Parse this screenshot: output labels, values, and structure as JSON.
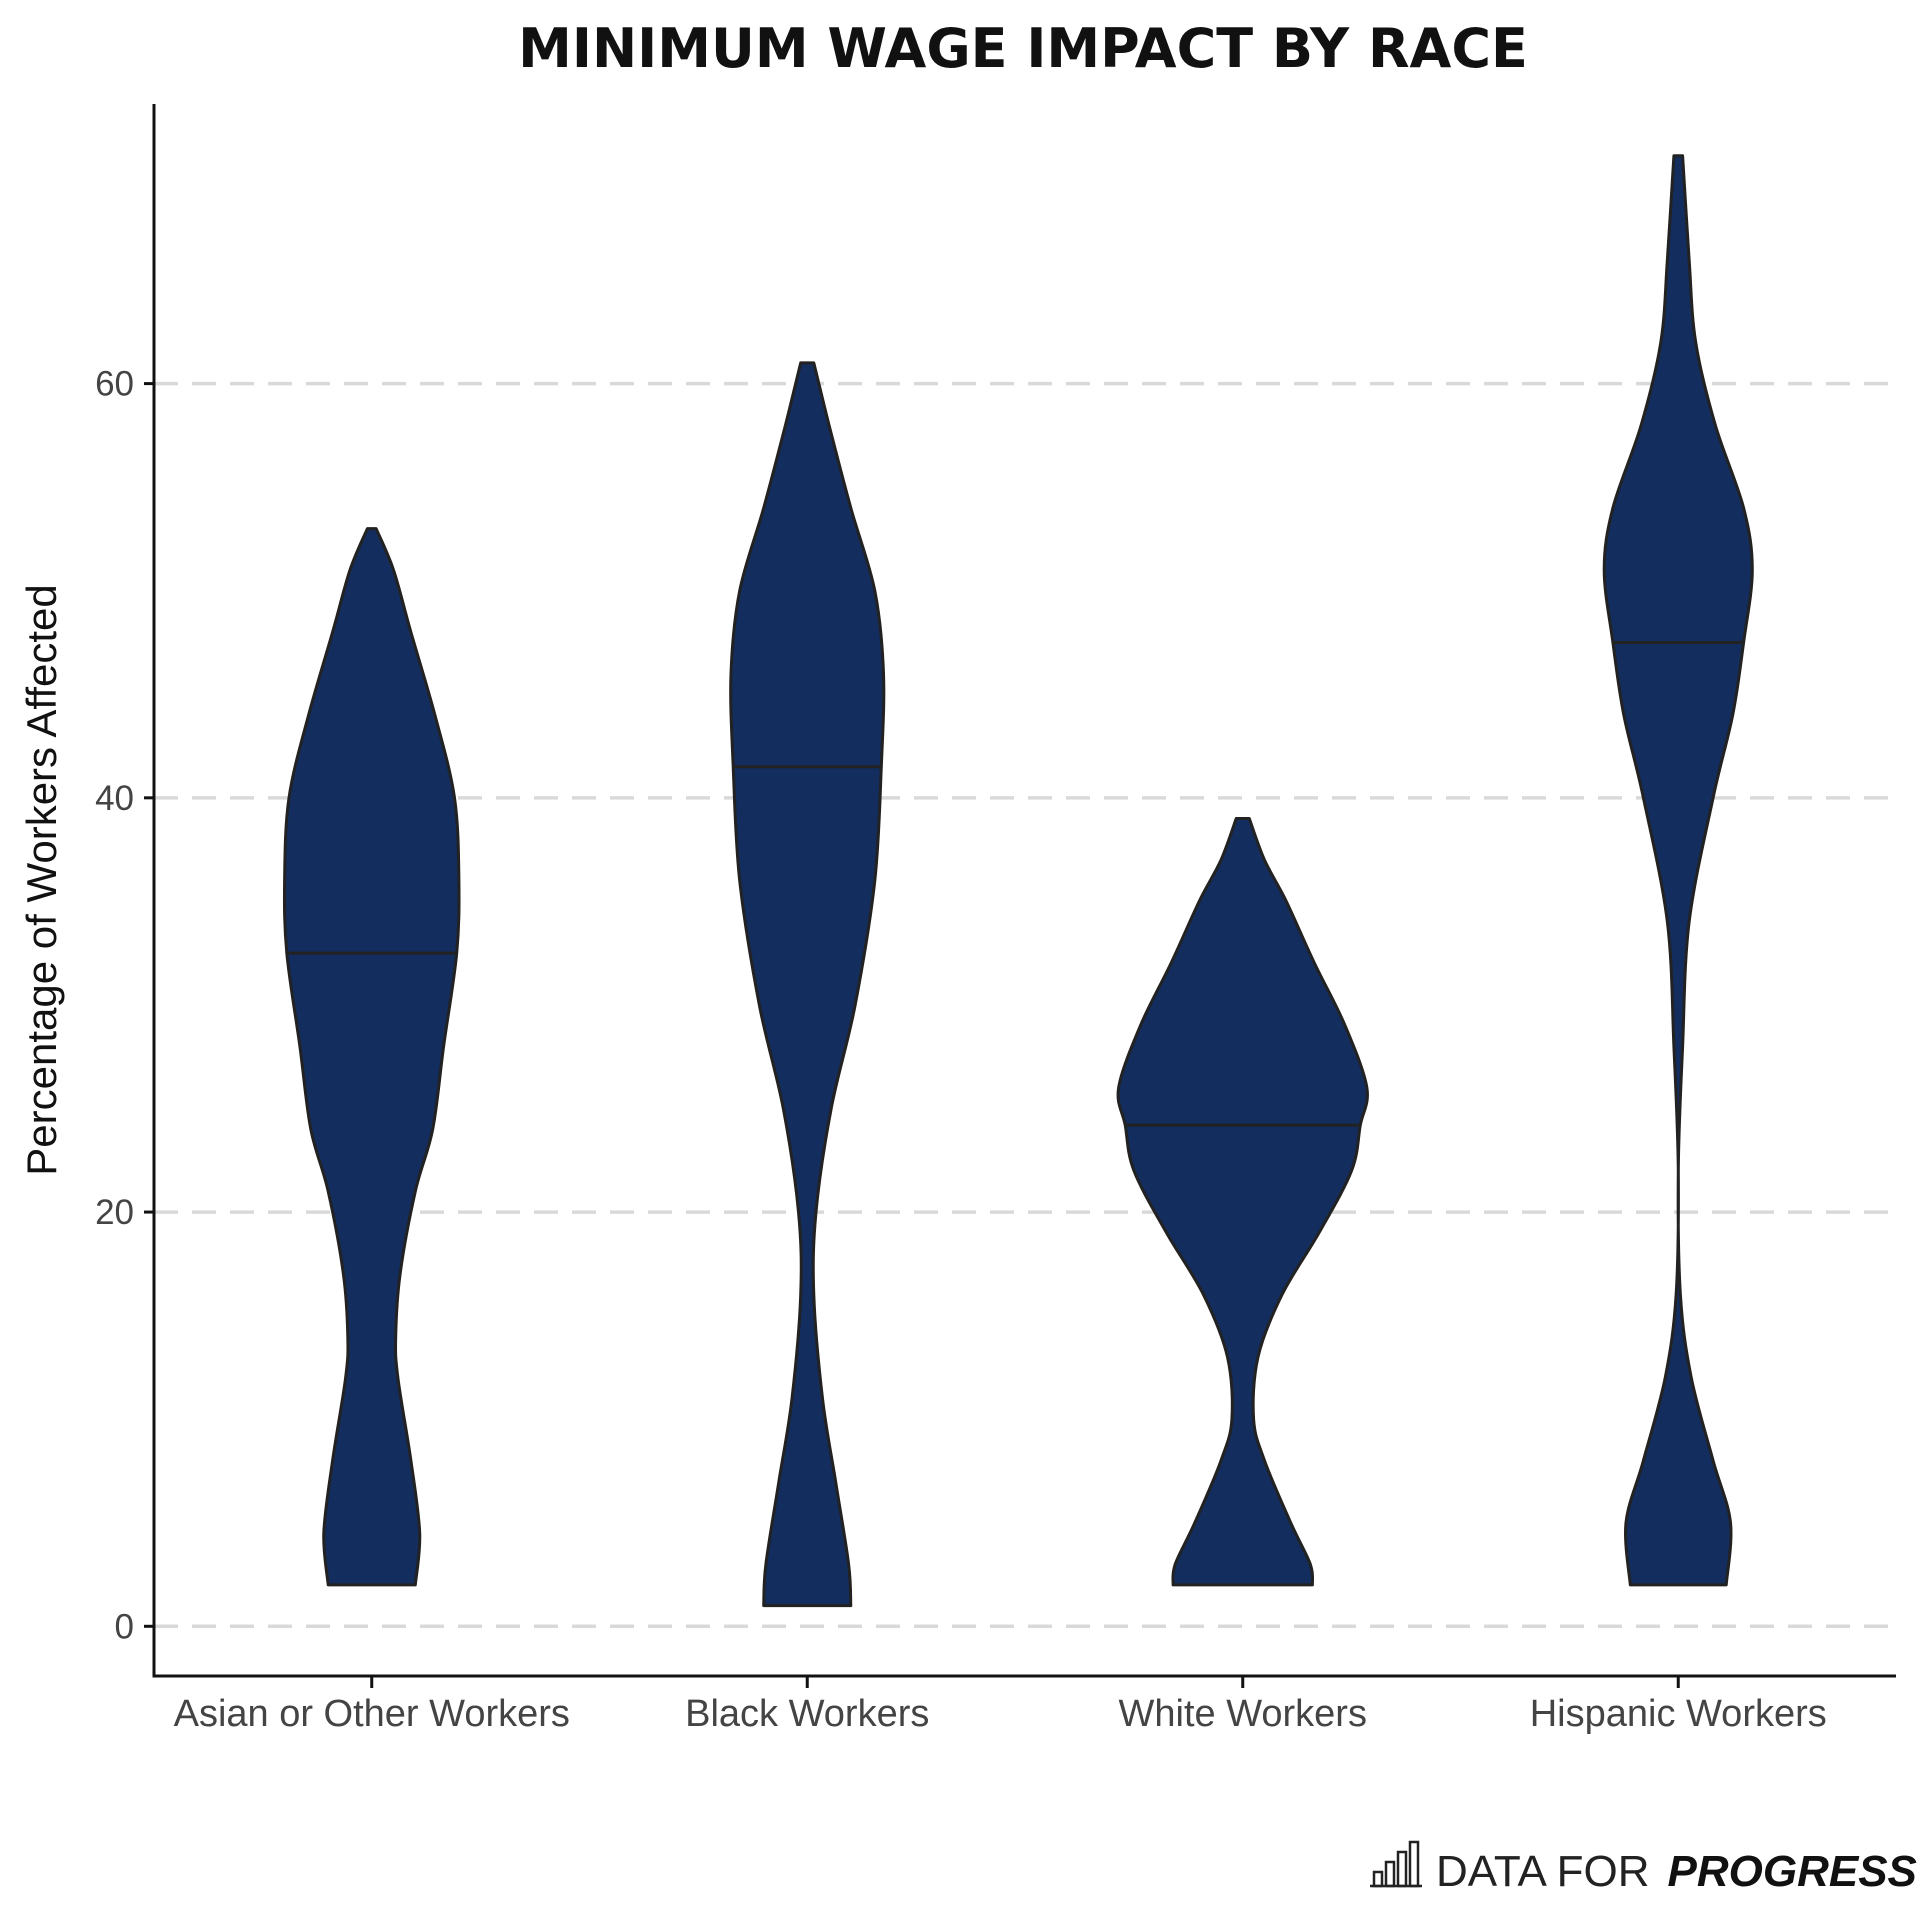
{
  "chart_data": {
    "type": "violin",
    "title": "MINIMUM WAGE IMPACT BY RACE",
    "xlabel": "",
    "ylabel": "Percentage of Workers Affected",
    "ylim": [
      -2.4,
      73.5
    ],
    "yticks": [
      0,
      20,
      40,
      60
    ],
    "grid": "horizontal-dashed",
    "legend": "none",
    "colors": {
      "fill": "#132D5E",
      "outline": "#222222",
      "grid": "#D9D9D9"
    },
    "categories": [
      "Asian or Other Workers",
      "Black Workers",
      "White Workers",
      "Hispanic Workers"
    ],
    "series": [
      {
        "category": "Asian or Other Workers",
        "min": 2,
        "max": 53,
        "median": 32.5,
        "density": [
          [
            2,
            0.2
          ],
          [
            4.5,
            0.22
          ],
          [
            8,
            0.18
          ],
          [
            12,
            0.12
          ],
          [
            14,
            0.11
          ],
          [
            17,
            0.13
          ],
          [
            21,
            0.2
          ],
          [
            24,
            0.28
          ],
          [
            28,
            0.33
          ],
          [
            32.5,
            0.39
          ],
          [
            36,
            0.4
          ],
          [
            40,
            0.38
          ],
          [
            44,
            0.29
          ],
          [
            48,
            0.18
          ],
          [
            51,
            0.1
          ],
          [
            53,
            0.02
          ]
        ]
      },
      {
        "category": "Black Workers",
        "min": 1,
        "max": 61,
        "median": 41.5,
        "density": [
          [
            1,
            0.2
          ],
          [
            3,
            0.19
          ],
          [
            7,
            0.13
          ],
          [
            11,
            0.07
          ],
          [
            16,
            0.03
          ],
          [
            20,
            0.04
          ],
          [
            25,
            0.11
          ],
          [
            30,
            0.22
          ],
          [
            36,
            0.31
          ],
          [
            41.5,
            0.34
          ],
          [
            46,
            0.35
          ],
          [
            50,
            0.31
          ],
          [
            54,
            0.2
          ],
          [
            58,
            0.1
          ],
          [
            61,
            0.03
          ]
        ]
      },
      {
        "category": "White Workers",
        "min": 2,
        "max": 39,
        "median": 24.2,
        "density": [
          [
            2,
            0.32
          ],
          [
            3,
            0.31
          ],
          [
            5,
            0.22
          ],
          [
            8,
            0.1
          ],
          [
            10,
            0.05
          ],
          [
            13,
            0.07
          ],
          [
            16,
            0.18
          ],
          [
            19,
            0.35
          ],
          [
            22,
            0.5
          ],
          [
            24.2,
            0.54
          ],
          [
            26,
            0.57
          ],
          [
            29,
            0.47
          ],
          [
            32,
            0.33
          ],
          [
            35,
            0.2
          ],
          [
            37,
            0.1
          ],
          [
            39,
            0.03
          ]
        ]
      },
      {
        "category": "Hispanic Workers",
        "min": 2,
        "max": 71,
        "median": 47.5,
        "density": [
          [
            2,
            0.22
          ],
          [
            5,
            0.24
          ],
          [
            8,
            0.16
          ],
          [
            12,
            0.06
          ],
          [
            16,
            0.01
          ],
          [
            22,
            0.0
          ],
          [
            28,
            0.02
          ],
          [
            34,
            0.05
          ],
          [
            40,
            0.16
          ],
          [
            44,
            0.25
          ],
          [
            47.5,
            0.3
          ],
          [
            51,
            0.34
          ],
          [
            54,
            0.3
          ],
          [
            58,
            0.17
          ],
          [
            62,
            0.08
          ],
          [
            66,
            0.05
          ],
          [
            71,
            0.02
          ]
        ]
      }
    ]
  },
  "footer": {
    "brand_prefix": "DATA FOR",
    "brand_emphasis": "PROGRESS",
    "logo_icon": "bar-chart-icon"
  }
}
